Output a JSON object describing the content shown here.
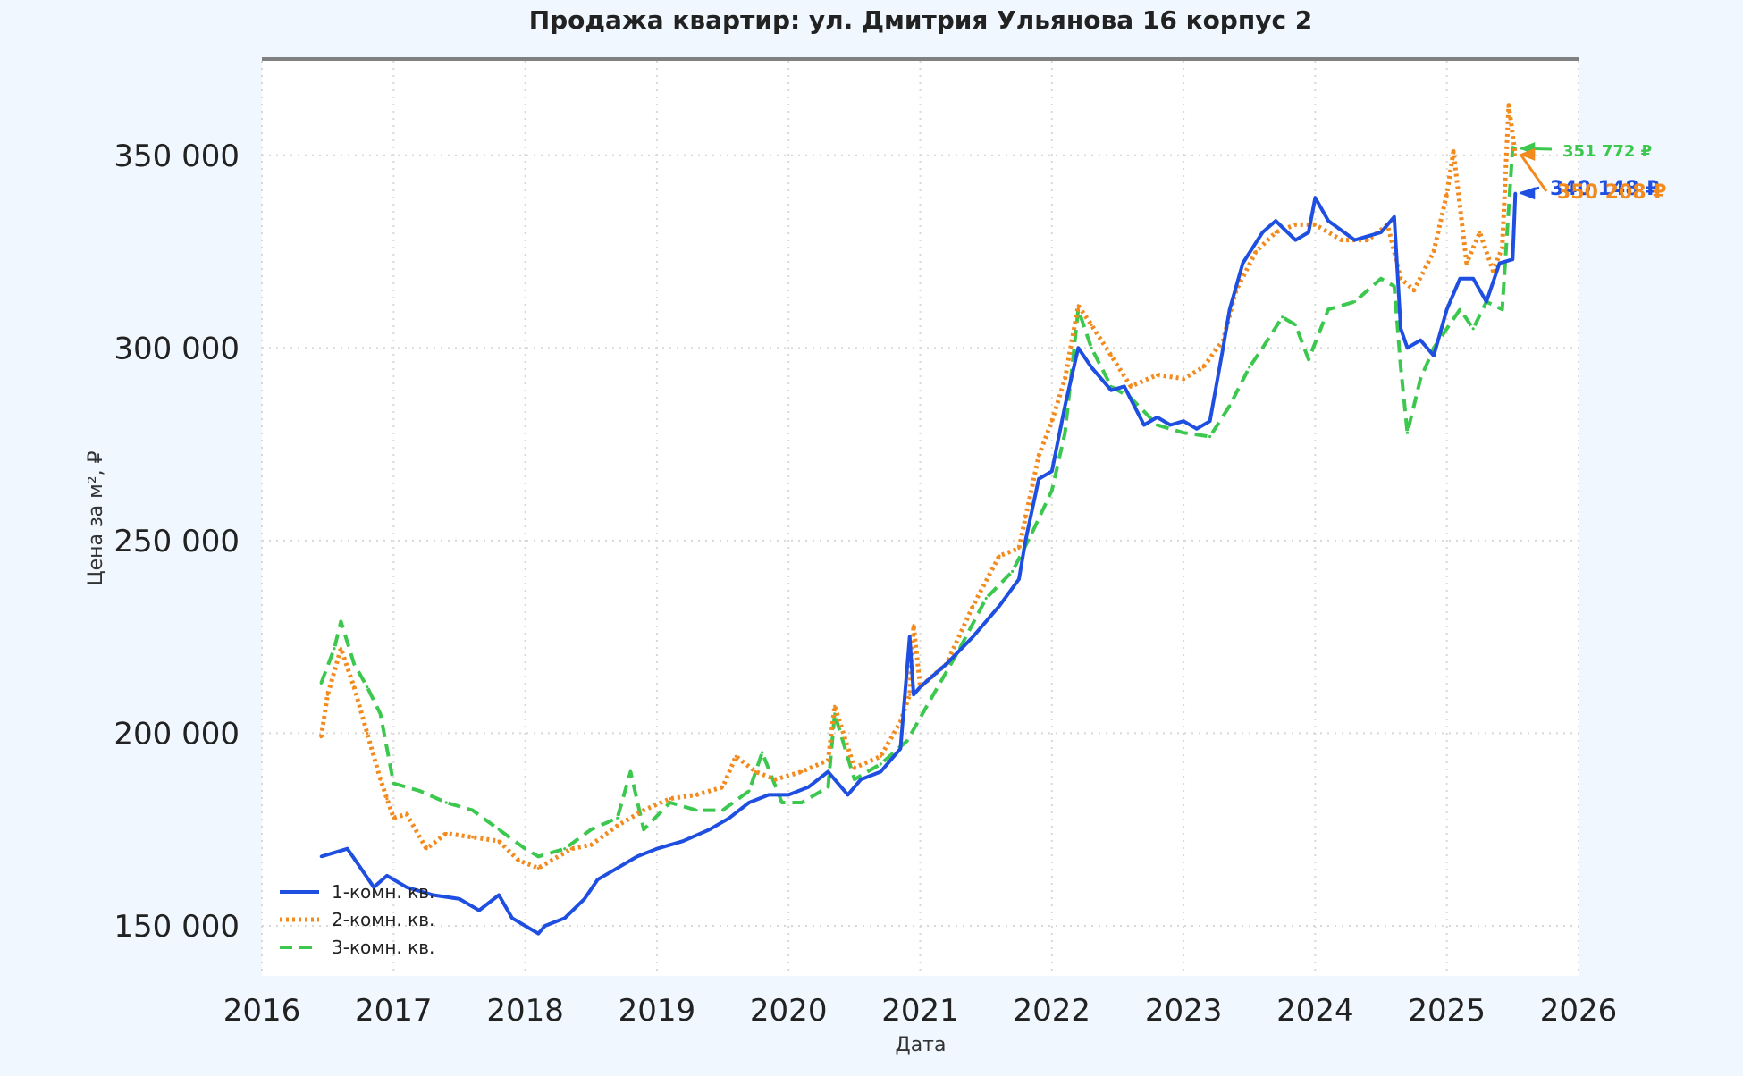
{
  "chart_data": {
    "type": "line",
    "title": "Продажа квартир: ул. Дмитрия Ульянова 16 корпус 2",
    "xlabel": "Дата",
    "ylabel": "Цена за м², ₽",
    "xlim": [
      2016.0,
      2026.0
    ],
    "ylim": [
      137000,
      375000
    ],
    "x_ticks": [
      "2016",
      "2017",
      "2018",
      "2019",
      "2020",
      "2021",
      "2022",
      "2023",
      "2024",
      "2025",
      "2026"
    ],
    "y_ticks": [
      "150 000",
      "200 000",
      "250 000",
      "300 000",
      "350 000"
    ],
    "y_tick_values": [
      150000,
      200000,
      250000,
      300000,
      350000
    ],
    "grid": true,
    "legend_position": "lower-left",
    "series": [
      {
        "name": "1-комн. кв.",
        "color": "#1f4fe0",
        "style": "solid",
        "x": [
          2016.45,
          2016.55,
          2016.65,
          2016.75,
          2016.85,
          2016.95,
          2017.0,
          2017.1,
          2017.3,
          2017.5,
          2017.65,
          2017.8,
          2017.9,
          2018.0,
          2018.1,
          2018.15,
          2018.3,
          2018.45,
          2018.55,
          2018.7,
          2018.85,
          2019.0,
          2019.2,
          2019.4,
          2019.55,
          2019.7,
          2019.85,
          2020.0,
          2020.15,
          2020.3,
          2020.45,
          2020.55,
          2020.7,
          2020.85,
          2020.92,
          2020.95,
          2021.0,
          2021.2,
          2021.4,
          2021.6,
          2021.75,
          2021.8,
          2021.9,
          2022.0,
          2022.1,
          2022.2,
          2022.3,
          2022.45,
          2022.55,
          2022.7,
          2022.8,
          2022.9,
          2023.0,
          2023.1,
          2023.2,
          2023.3,
          2023.35,
          2023.45,
          2023.6,
          2023.7,
          2023.85,
          2023.95,
          2024.0,
          2024.1,
          2024.3,
          2024.5,
          2024.6,
          2024.65,
          2024.7,
          2024.8,
          2024.9,
          2025.0,
          2025.1,
          2025.2,
          2025.3,
          2025.4,
          2025.5,
          2025.52
        ],
        "values": [
          168000,
          169000,
          170000,
          165000,
          160000,
          163000,
          162000,
          160000,
          158000,
          157000,
          154000,
          158000,
          152000,
          150000,
          148000,
          150000,
          152000,
          157000,
          162000,
          165000,
          168000,
          170000,
          172000,
          175000,
          178000,
          182000,
          184000,
          184000,
          186000,
          190000,
          184000,
          188000,
          190000,
          196000,
          225000,
          210000,
          212000,
          218000,
          225000,
          233000,
          240000,
          250000,
          266000,
          268000,
          285000,
          300000,
          295000,
          289000,
          290000,
          280000,
          282000,
          280000,
          281000,
          279000,
          281000,
          300000,
          310000,
          322000,
          330000,
          333000,
          328000,
          330000,
          339000,
          333000,
          328000,
          330000,
          334000,
          305000,
          300000,
          302000,
          298000,
          310000,
          318000,
          318000,
          312000,
          322000,
          323000,
          340148
        ]
      },
      {
        "name": "2-комн. кв.",
        "color": "#f28a1e",
        "style": "dotted",
        "x": [
          2016.45,
          2016.5,
          2016.6,
          2016.7,
          2016.8,
          2016.9,
          2016.95,
          2017.0,
          2017.1,
          2017.25,
          2017.4,
          2017.6,
          2017.8,
          2017.95,
          2018.1,
          2018.2,
          2018.35,
          2018.5,
          2018.7,
          2018.9,
          2019.1,
          2019.3,
          2019.5,
          2019.6,
          2019.75,
          2019.9,
          2020.1,
          2020.3,
          2020.35,
          2020.5,
          2020.7,
          2020.85,
          2020.92,
          2020.95,
          2021.0,
          2021.2,
          2021.4,
          2021.6,
          2021.75,
          2021.8,
          2021.9,
          2022.0,
          2022.1,
          2022.2,
          2022.3,
          2022.45,
          2022.6,
          2022.8,
          2023.0,
          2023.15,
          2023.3,
          2023.4,
          2023.55,
          2023.7,
          2023.85,
          2024.0,
          2024.2,
          2024.4,
          2024.55,
          2024.65,
          2024.75,
          2024.9,
          2025.0,
          2025.05,
          2025.15,
          2025.25,
          2025.35,
          2025.42,
          2025.47,
          2025.52
        ],
        "values": [
          199000,
          210000,
          222000,
          212000,
          200000,
          188000,
          183000,
          178000,
          179000,
          170000,
          174000,
          173000,
          172000,
          167000,
          165000,
          167000,
          170000,
          171000,
          176000,
          180000,
          183000,
          184000,
          186000,
          194000,
          190000,
          188000,
          190000,
          193000,
          207000,
          191000,
          194000,
          203000,
          210000,
          228000,
          212000,
          218000,
          233000,
          246000,
          248000,
          256000,
          272000,
          281000,
          292000,
          311000,
          306000,
          298000,
          290000,
          293000,
          292000,
          295000,
          302000,
          315000,
          325000,
          330000,
          332000,
          332000,
          328000,
          328000,
          332000,
          318000,
          315000,
          325000,
          340000,
          351000,
          322000,
          330000,
          320000,
          326000,
          363000,
          350208
        ]
      },
      {
        "name": "3-комн. кв.",
        "color": "#3cc84e",
        "style": "dashed",
        "x": [
          2016.45,
          2016.55,
          2016.6,
          2016.7,
          2016.8,
          2016.9,
          2017.0,
          2017.2,
          2017.4,
          2017.6,
          2017.8,
          2018.0,
          2018.1,
          2018.3,
          2018.5,
          2018.7,
          2018.8,
          2018.9,
          2019.1,
          2019.3,
          2019.5,
          2019.7,
          2019.8,
          2019.95,
          2020.1,
          2020.3,
          2020.35,
          2020.5,
          2020.7,
          2020.9,
          2021.1,
          2021.3,
          2021.5,
          2021.7,
          2021.85,
          2022.0,
          2022.1,
          2022.2,
          2022.3,
          2022.45,
          2022.6,
          2022.8,
          2023.0,
          2023.2,
          2023.35,
          2023.5,
          2023.6,
          2023.75,
          2023.85,
          2023.95,
          2024.1,
          2024.3,
          2024.5,
          2024.6,
          2024.65,
          2024.7,
          2024.8,
          2024.9,
          2025.0,
          2025.1,
          2025.2,
          2025.3,
          2025.42,
          2025.5,
          2025.52
        ],
        "values": [
          213000,
          222000,
          229000,
          218000,
          212000,
          205000,
          187000,
          185000,
          182000,
          180000,
          175000,
          170000,
          168000,
          170000,
          175000,
          178000,
          190000,
          175000,
          182000,
          180000,
          180000,
          185000,
          195000,
          182000,
          182000,
          186000,
          205000,
          188000,
          192000,
          198000,
          210000,
          222000,
          235000,
          242000,
          252000,
          263000,
          278000,
          310000,
          300000,
          290000,
          287000,
          280000,
          278000,
          277000,
          285000,
          295000,
          300000,
          308000,
          306000,
          297000,
          310000,
          312000,
          318000,
          316000,
          295000,
          278000,
          292000,
          300000,
          305000,
          310000,
          305000,
          312000,
          310000,
          352000,
          351772
        ]
      }
    ],
    "annotations": [
      {
        "label": "351 772 ₽",
        "x": 2025.52,
        "y": 351772,
        "color": "#3cc84e"
      },
      {
        "label": "340 148 ₽",
        "x": 2025.52,
        "y": 340148,
        "color": "#1f4fe0"
      },
      {
        "label": "350 208 ₽",
        "x": 2025.52,
        "y": 350208,
        "color": "#f28a1e"
      }
    ]
  }
}
